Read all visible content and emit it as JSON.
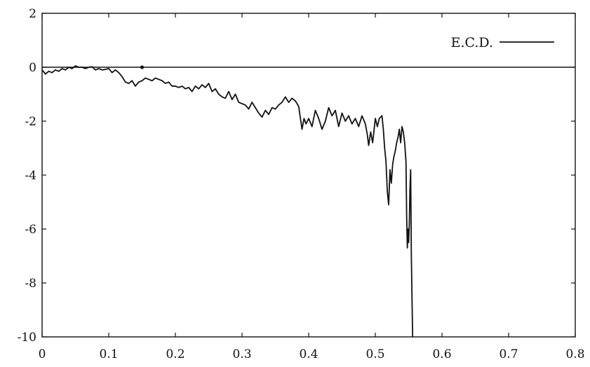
{
  "chart_data": {
    "type": "line",
    "title": "",
    "xlabel": "",
    "ylabel": "",
    "xlim": [
      0,
      0.8
    ],
    "ylim": [
      -10,
      2
    ],
    "x_ticks": [
      "0",
      "0.1",
      "0.2",
      "0.3",
      "0.4",
      "0.5",
      "0.6",
      "0.7",
      "0.8"
    ],
    "y_ticks": [
      "2",
      "0",
      "-2",
      "-4",
      "-6",
      "-8",
      "-10"
    ],
    "zero_line": 0,
    "grid": false,
    "legend_position": "top-right",
    "line_color": "#111111",
    "series": [
      {
        "name": "E.C.D.",
        "x": [
          0,
          0.005,
          0.01,
          0.015,
          0.02,
          0.025,
          0.03,
          0.035,
          0.04,
          0.045,
          0.05,
          0.055,
          0.06,
          0.065,
          0.07,
          0.075,
          0.08,
          0.085,
          0.09,
          0.095,
          0.1,
          0.105,
          0.11,
          0.115,
          0.12,
          0.125,
          0.13,
          0.135,
          0.14,
          0.145,
          0.15,
          0.155,
          0.16,
          0.165,
          0.17,
          0.175,
          0.18,
          0.185,
          0.19,
          0.195,
          0.2,
          0.205,
          0.21,
          0.215,
          0.22,
          0.225,
          0.23,
          0.235,
          0.24,
          0.245,
          0.25,
          0.255,
          0.26,
          0.265,
          0.27,
          0.275,
          0.28,
          0.285,
          0.29,
          0.295,
          0.3,
          0.305,
          0.31,
          0.315,
          0.32,
          0.325,
          0.33,
          0.335,
          0.34,
          0.345,
          0.35,
          0.355,
          0.36,
          0.365,
          0.37,
          0.375,
          0.38,
          0.385,
          0.39,
          0.393,
          0.396,
          0.4,
          0.405,
          0.41,
          0.415,
          0.42,
          0.425,
          0.43,
          0.435,
          0.44,
          0.445,
          0.45,
          0.455,
          0.46,
          0.465,
          0.47,
          0.475,
          0.48,
          0.485,
          0.488,
          0.49,
          0.493,
          0.496,
          0.5,
          0.503,
          0.506,
          0.51,
          0.512,
          0.514,
          0.516,
          0.518,
          0.52,
          0.522,
          0.524,
          0.526,
          0.528,
          0.53,
          0.532,
          0.534,
          0.536,
          0.538,
          0.54,
          0.542,
          0.544,
          0.546,
          0.547,
          0.548,
          0.549,
          0.55,
          0.551,
          0.552,
          0.553,
          0.554,
          0.555,
          0.556
        ],
        "y": [
          -0.1,
          -0.25,
          -0.15,
          -0.2,
          -0.1,
          -0.15,
          -0.05,
          -0.1,
          0.0,
          -0.05,
          0.05,
          0.0,
          0.0,
          -0.05,
          0.0,
          0.02,
          -0.1,
          -0.05,
          -0.1,
          -0.08,
          -0.05,
          -0.2,
          -0.1,
          -0.2,
          -0.35,
          -0.55,
          -0.6,
          -0.5,
          -0.7,
          -0.55,
          -0.5,
          -0.4,
          -0.45,
          -0.5,
          -0.4,
          -0.45,
          -0.5,
          -0.6,
          -0.55,
          -0.7,
          -0.7,
          -0.75,
          -0.7,
          -0.8,
          -0.75,
          -0.9,
          -0.7,
          -0.8,
          -0.65,
          -0.75,
          -0.6,
          -0.9,
          -0.8,
          -1.0,
          -1.1,
          -1.15,
          -0.9,
          -1.2,
          -1.0,
          -1.3,
          -1.35,
          -1.4,
          -1.55,
          -1.3,
          -1.5,
          -1.7,
          -1.85,
          -1.6,
          -1.75,
          -1.5,
          -1.55,
          -1.4,
          -1.3,
          -1.1,
          -1.3,
          -1.15,
          -1.25,
          -1.45,
          -2.3,
          -1.9,
          -2.1,
          -1.9,
          -2.2,
          -1.6,
          -1.9,
          -2.3,
          -2.0,
          -1.5,
          -1.8,
          -1.6,
          -2.2,
          -1.7,
          -2.0,
          -1.8,
          -2.1,
          -1.9,
          -2.2,
          -1.8,
          -2.1,
          -2.5,
          -2.9,
          -2.4,
          -2.8,
          -1.9,
          -2.2,
          -1.9,
          -1.8,
          -2.3,
          -3.0,
          -3.5,
          -4.6,
          -5.1,
          -3.8,
          -4.3,
          -3.6,
          -3.3,
          -3.1,
          -2.8,
          -2.6,
          -2.3,
          -2.8,
          -2.2,
          -2.4,
          -2.8,
          -3.5,
          -5.5,
          -6.7,
          -6.0,
          -6.5,
          -5.8,
          -4.5,
          -3.8,
          -6.9,
          -8.5,
          -10.0
        ]
      }
    ]
  }
}
